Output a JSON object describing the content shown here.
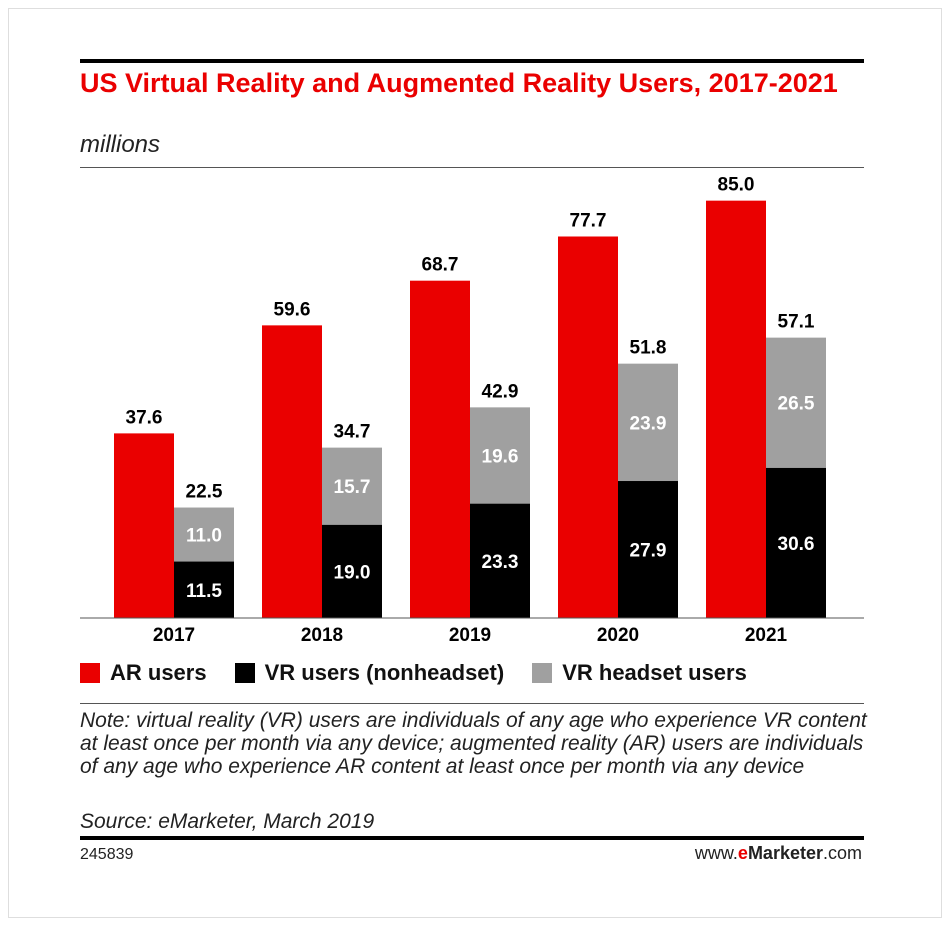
{
  "header": {
    "title": "US Virtual Reality and Augmented Reality Users, 2017-2021",
    "subtitle": "millions"
  },
  "chart_data": {
    "type": "bar",
    "stacked_series": [
      "VR users (nonheadset)",
      "VR headset users"
    ],
    "categories": [
      "2017",
      "2018",
      "2019",
      "2020",
      "2021"
    ],
    "series": [
      {
        "name": "AR users",
        "color": "#ea0000",
        "values": [
          37.6,
          59.6,
          68.7,
          77.7,
          85.0
        ]
      },
      {
        "name": "VR users (nonheadset)",
        "color": "#000000",
        "values": [
          11.5,
          19.0,
          23.3,
          27.9,
          30.6
        ]
      },
      {
        "name": "VR headset users",
        "color": "#a0a0a0",
        "values": [
          11.0,
          15.7,
          19.6,
          23.9,
          26.5
        ]
      }
    ],
    "vr_totals": [
      22.5,
      34.7,
      42.9,
      51.8,
      57.1
    ],
    "ylim": [
      0,
      85
    ],
    "xlabel": "",
    "ylabel": "",
    "grid": false,
    "legend_placement": "bottom"
  },
  "legend": {
    "items": [
      {
        "label": "AR users",
        "color": "#ea0000"
      },
      {
        "label": "VR users (nonheadset)",
        "color": "#000000"
      },
      {
        "label": "VR headset users",
        "color": "#a0a0a0"
      }
    ]
  },
  "footer": {
    "note": "Note: virtual reality (VR) users are individuals of any age who experience VR content at least once per month via any device; augmented reality (AR) users are individuals of any age who experience AR content at least once per month via any device",
    "source": "Source: eMarketer, March 2019",
    "chart_id": "245839",
    "brand_prefix": "www.",
    "brand_e": "e",
    "brand_name": "Marketer",
    "brand_suffix": ".com"
  }
}
